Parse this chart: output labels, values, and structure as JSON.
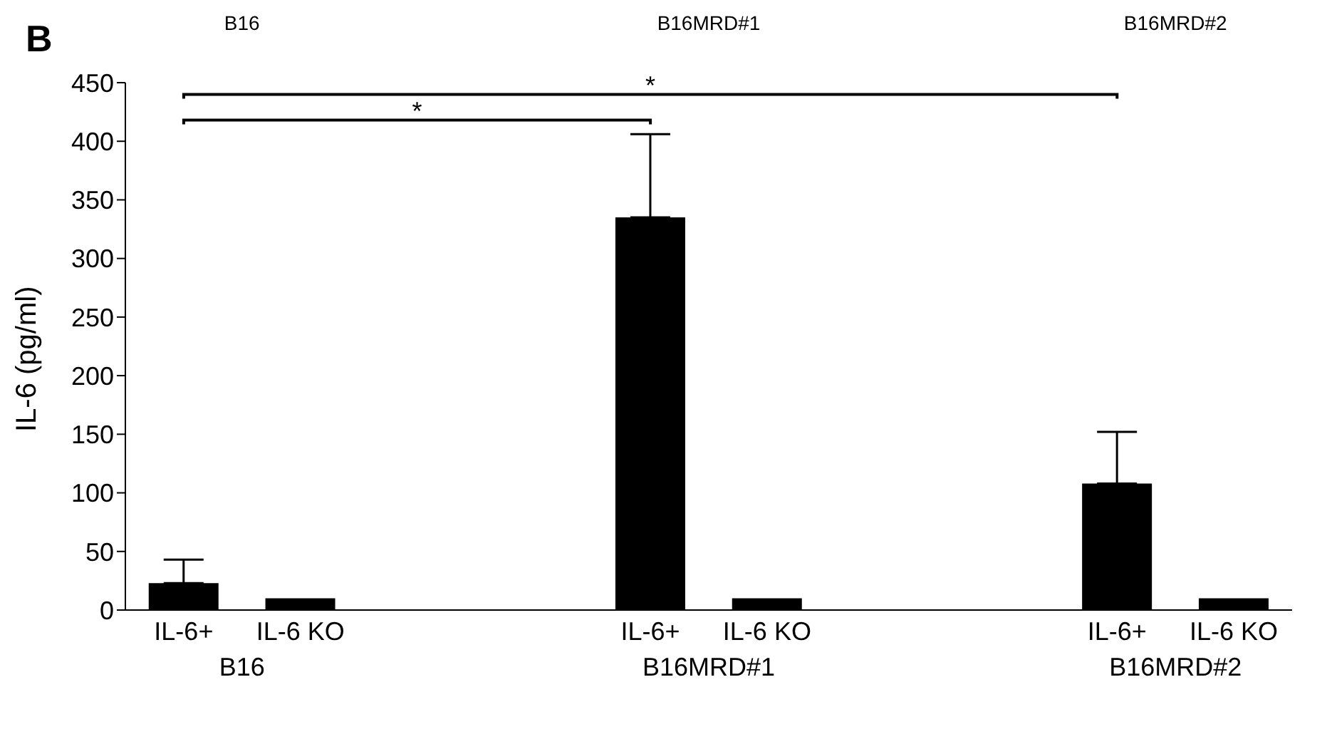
{
  "chart_data": {
    "type": "bar",
    "ylabel": "IL-6 (pg/ml)",
    "categories": [
      "IL-6+",
      "IL-6 KO",
      null,
      null,
      "IL-6+",
      "IL-6 KO",
      null,
      null,
      "IL-6+",
      "IL-6 KO"
    ],
    "values": [
      23,
      10,
      null,
      null,
      335,
      10,
      null,
      null,
      108,
      10
    ],
    "errors": [
      [
        23,
        43
      ],
      null,
      null,
      null,
      [
        335,
        406
      ],
      null,
      null,
      null,
      [
        108,
        152
      ],
      null
    ],
    "color": "#000000",
    "ylim": [
      0,
      450
    ],
    "yticks": [
      0,
      50,
      100,
      150,
      200,
      250,
      300,
      350,
      400,
      450
    ],
    "annotations": [
      "B",
      "*",
      "*",
      "B16",
      "B16MRD#1",
      "B16MRD#2",
      "B16",
      "B16MRD#1",
      "B16MRD#2"
    ]
  }
}
